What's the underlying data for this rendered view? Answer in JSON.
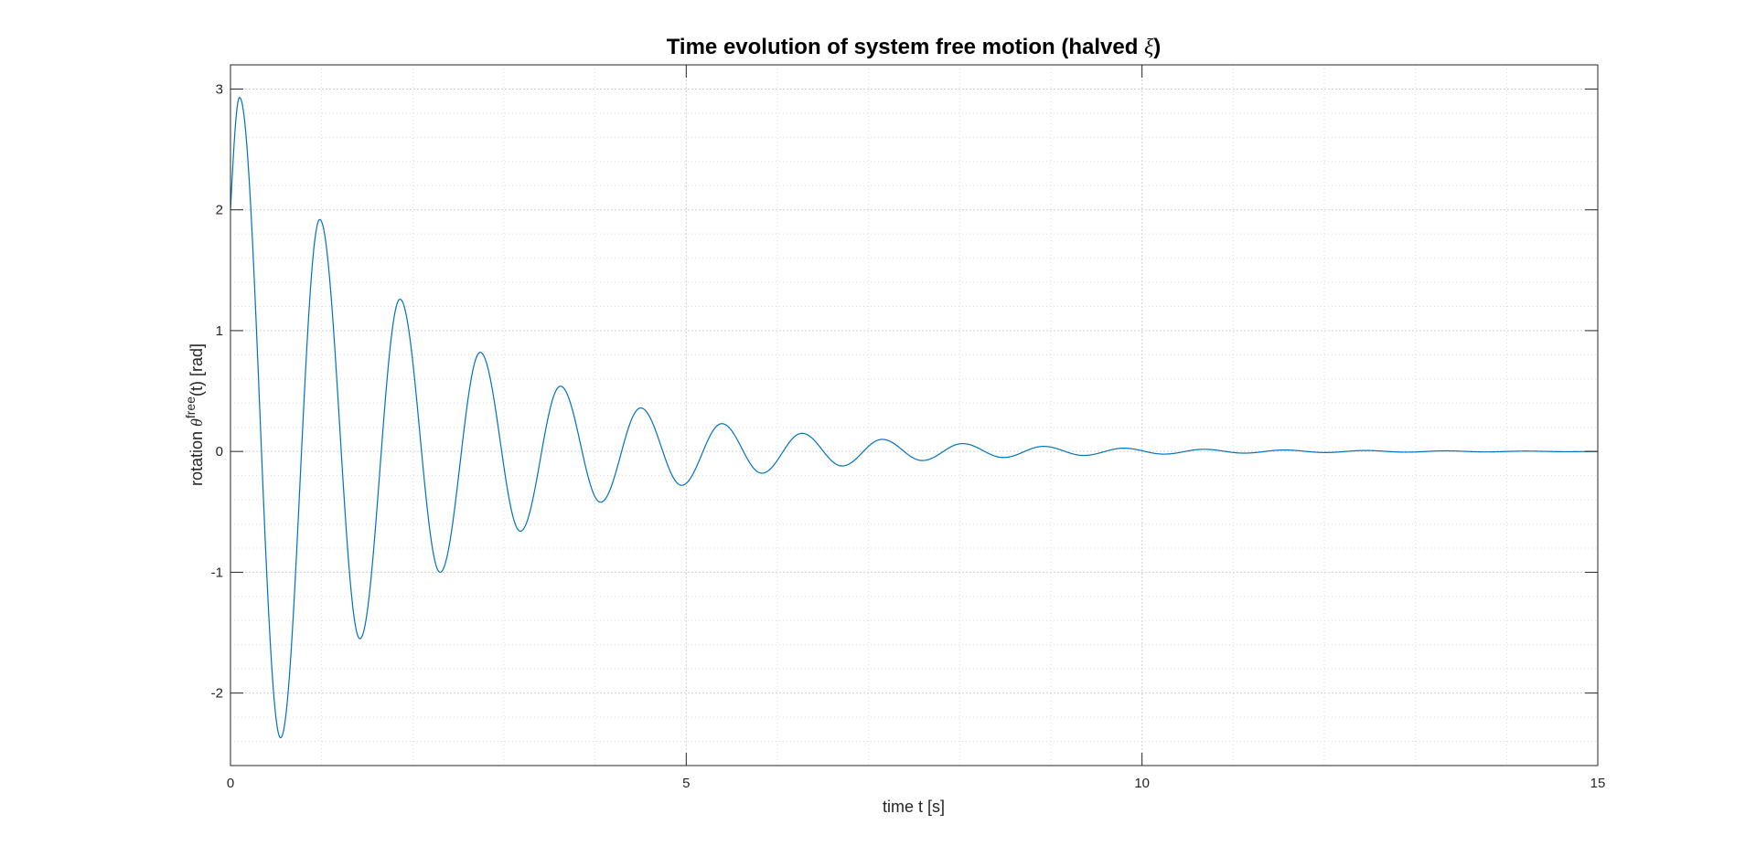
{
  "chart_data": {
    "type": "line",
    "title_prefix": "Time evolution of system free motion (halved ",
    "title_symbol": "ξ",
    "title_suffix": ")",
    "xlabel": "time t [s]",
    "ylabel_prefix": "rotation ",
    "ylabel_symbol": "θ",
    "ylabel_superscript": "free",
    "ylabel_suffix": "(t)   [rad]",
    "xlim": [
      0,
      15
    ],
    "ylim": [
      -2.6,
      3.2
    ],
    "xticks": [
      0,
      5,
      10,
      15
    ],
    "yticks": [
      -2,
      -1,
      0,
      1,
      2,
      3
    ],
    "xtick_labels": [
      "0",
      "5",
      "10",
      "15"
    ],
    "ytick_labels": [
      "-2",
      "-1",
      "0",
      "1",
      "2",
      "3"
    ],
    "grid": true,
    "minor_grid": true,
    "line_color": "#0072BD",
    "series": [
      {
        "x": [
          0,
          0.1,
          0.55,
          0.98,
          1.42,
          1.86,
          2.3,
          2.74,
          3.18,
          3.62,
          4.06,
          4.5,
          4.95,
          5.39,
          5.83,
          6.27,
          6.71,
          7.15,
          7.59,
          8.03,
          8.48,
          8.92,
          9.36,
          9.8,
          10.24,
          10.68,
          11.12,
          11.56,
          12.01,
          12.45,
          12.89,
          13.33,
          13.77,
          14.21,
          14.65,
          15
        ],
        "y": [
          2.0,
          2.93,
          -2.37,
          1.92,
          -1.55,
          1.26,
          -1.0,
          0.82,
          -0.66,
          0.54,
          -0.42,
          0.36,
          -0.28,
          0.23,
          -0.18,
          0.15,
          -0.12,
          0.1,
          -0.075,
          0.065,
          -0.05,
          0.042,
          -0.033,
          0.027,
          -0.022,
          0.018,
          -0.014,
          0.012,
          -0.009,
          0.008,
          -0.006,
          0.005,
          -0.004,
          0.003,
          -0.002,
          0.0
        ]
      }
    ]
  }
}
